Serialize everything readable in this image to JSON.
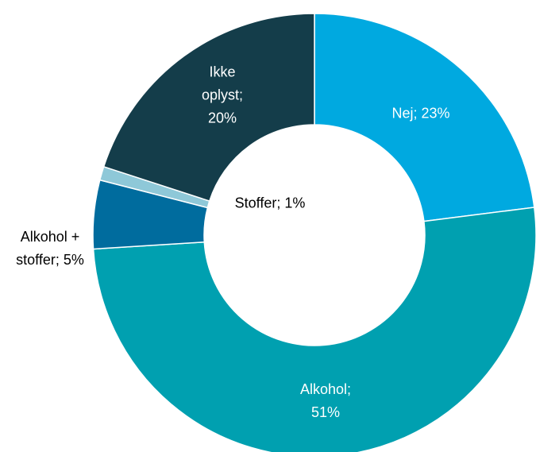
{
  "chart_data": {
    "type": "donut",
    "categories": [
      "Nej",
      "Alkohol",
      "Alkohol + stoffer",
      "Stoffer",
      "Ikke oplyst"
    ],
    "values": [
      23,
      51,
      5,
      1,
      20
    ],
    "value_labels": [
      "Nej; 23%",
      "Alkohol; 51%",
      "Alkohol + stoffer; 5%",
      "Stoffer; 1%",
      "Ikke oplyst; 20%"
    ],
    "colors": [
      "#00a9e0",
      "#00a0b0",
      "#006c9e",
      "#8ec8d8",
      "#143d4a"
    ]
  }
}
